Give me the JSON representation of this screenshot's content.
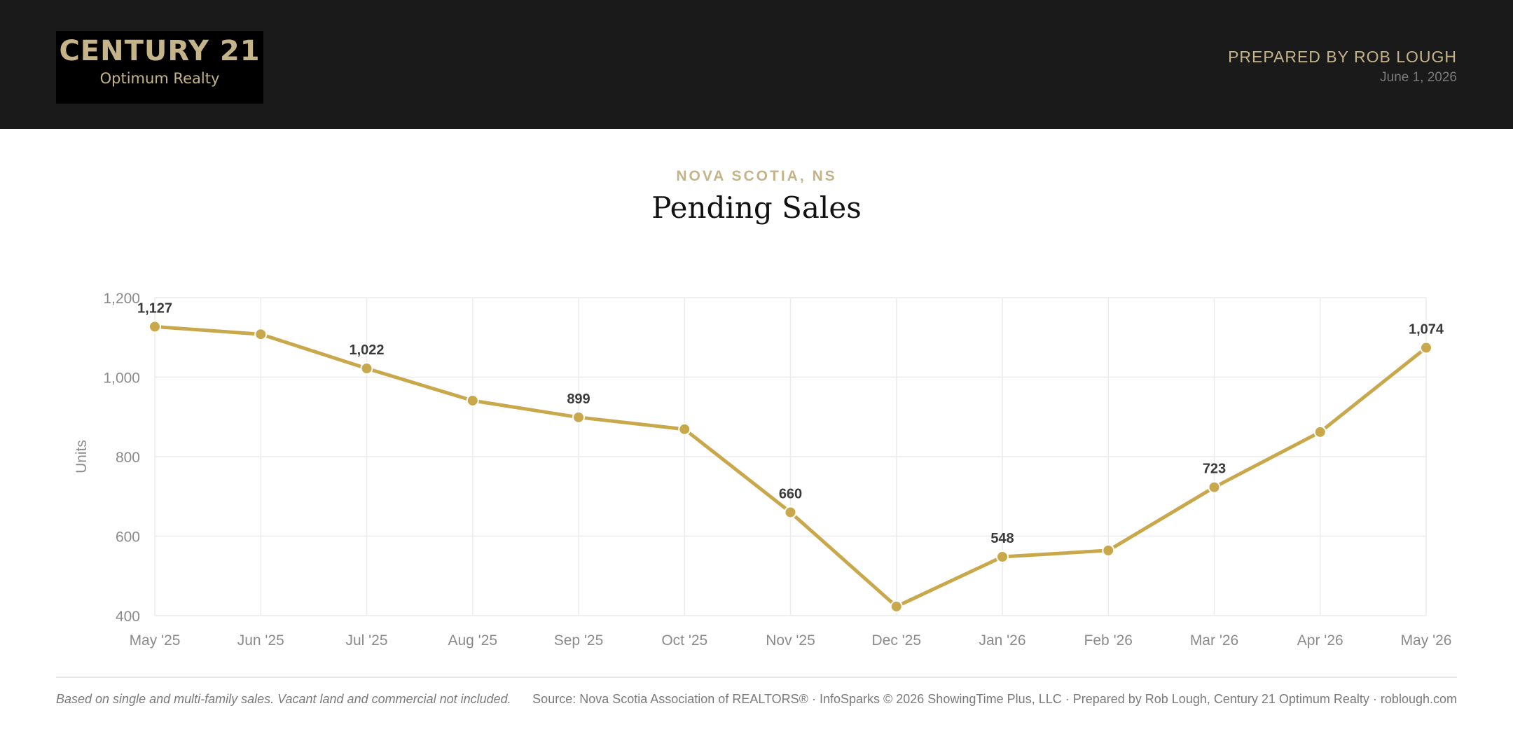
{
  "header": {
    "logo_title": "CENTURY 21",
    "logo_subtitle": "Optimum Realty",
    "prepared_by": "PREPARED BY ROB LOUGH",
    "date": "June 1, 2026"
  },
  "chart_data": {
    "type": "line",
    "region": "NOVA SCOTIA, NS",
    "title": "Pending Sales",
    "ylabel": "Units",
    "ylim": [
      400,
      1200
    ],
    "yticks": [
      400,
      600,
      800,
      1000,
      1200
    ],
    "grid": true,
    "categories": [
      "May '25",
      "Jun '25",
      "Jul '25",
      "Aug '25",
      "Sep '25",
      "Oct '25",
      "Nov '25",
      "Dec '25",
      "Jan '26",
      "Feb '26",
      "Mar '26",
      "Apr '26",
      "May '26"
    ],
    "values": [
      1127,
      1108,
      1022,
      941,
      899,
      869,
      660,
      423,
      548,
      564,
      723,
      862,
      1074
    ],
    "data_labels": [
      "1,127",
      "",
      "1,022",
      "",
      "899",
      "",
      "660",
      "",
      "548",
      "",
      "723",
      "",
      "1,074"
    ],
    "line_color": "#c9a84c"
  },
  "footer": {
    "note": "Based on single and multi-family sales. Vacant land and commercial not included.",
    "source": "Source: Nova Scotia Association of REALTORS® · InfoSparks © 2026 ShowingTime Plus, LLC · Prepared by Rob Lough, Century 21 Optimum Realty · roblough.com"
  }
}
